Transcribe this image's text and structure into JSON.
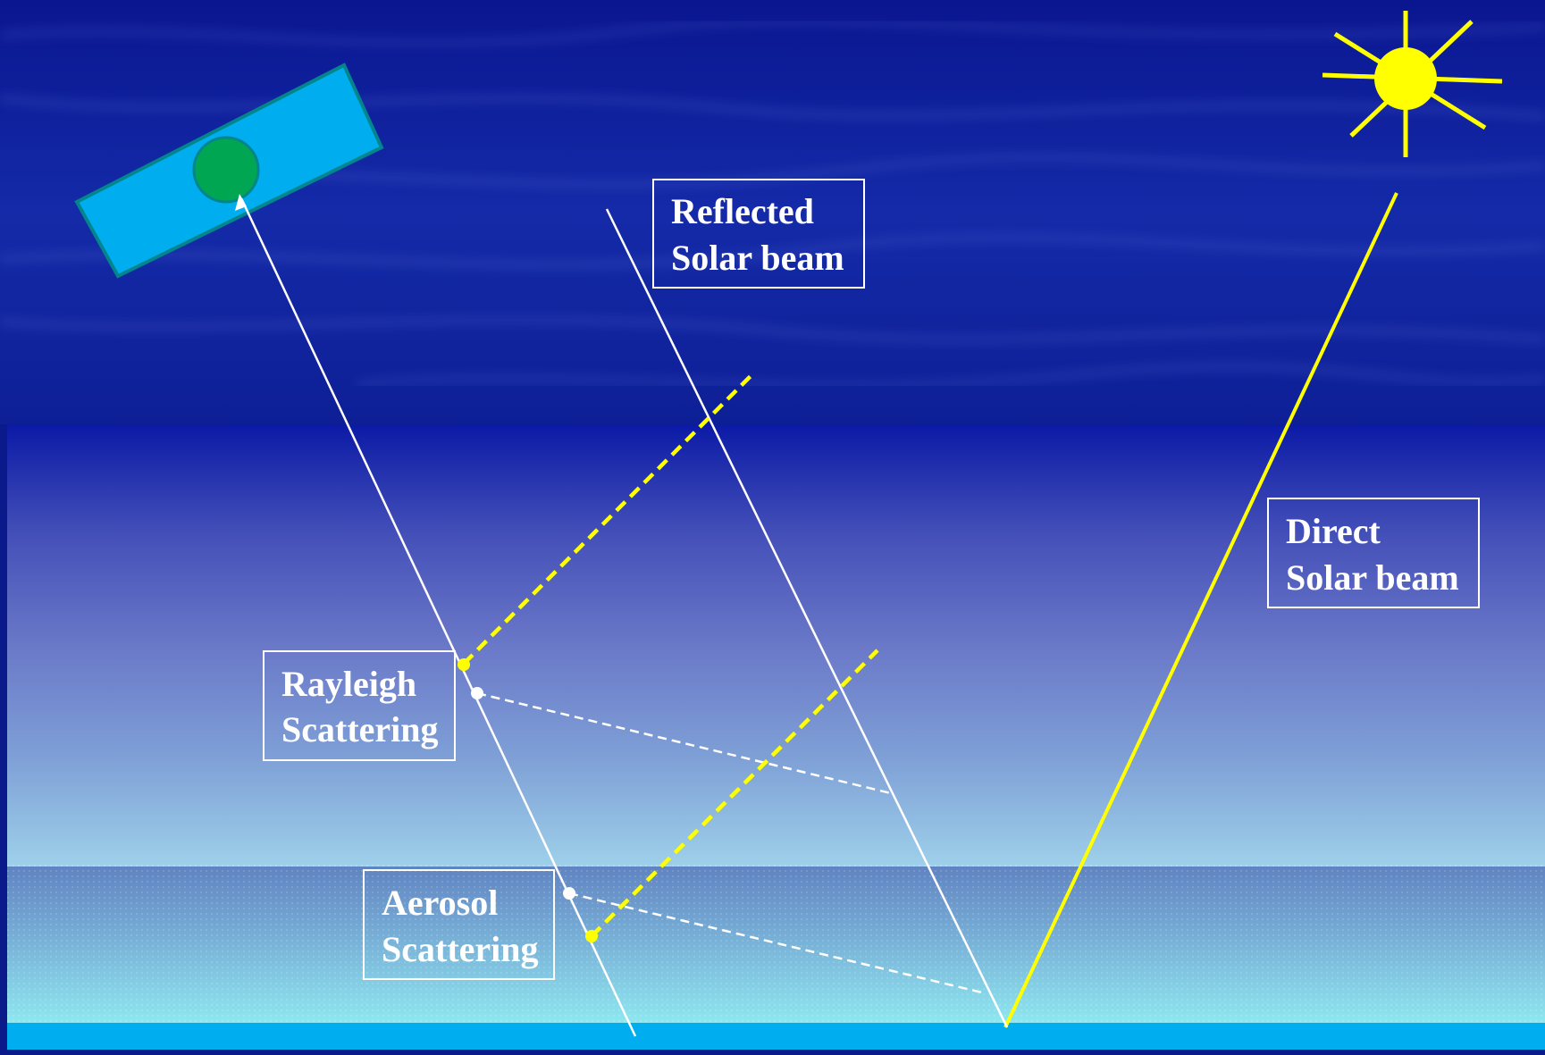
{
  "labels": {
    "reflected": [
      "Reflected",
      "Solar beam"
    ],
    "direct": [
      "Direct",
      "Solar beam"
    ],
    "rayleigh": [
      "Rayleigh",
      "Scattering"
    ],
    "aerosol": [
      "Aerosol",
      "Scattering"
    ]
  },
  "icons": {
    "satellite": "satellite-icon",
    "sun": "sun-icon"
  },
  "colors": {
    "sky_top": "#0a1690",
    "atmosphere_top": "#0b1aa6",
    "atmosphere_mid": "#6a78c8",
    "aerosol_layer": "#9fd8ee",
    "surface_band": "#00aeef",
    "sun": "#ffff00",
    "satellite_panel": "#00aeef",
    "satellite_body": "#00a651",
    "beam_white": "#ffffff",
    "beam_yellow": "#ffff00",
    "label_text": "#ffffff"
  }
}
